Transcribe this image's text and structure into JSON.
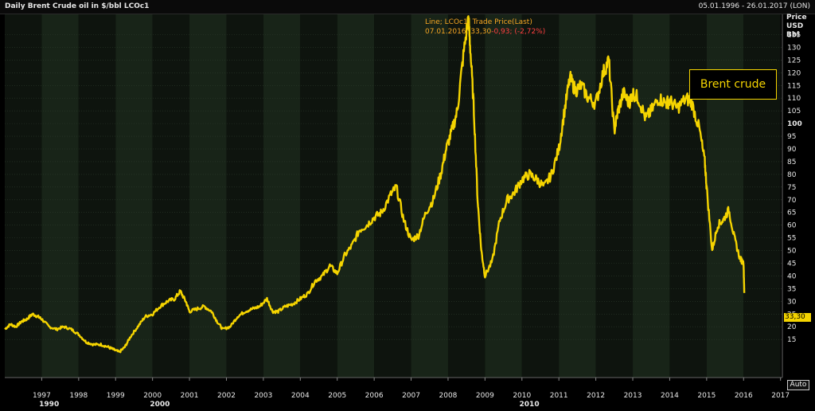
{
  "header": {
    "title": "Daily Brent Crude oil in $/bbl LCOc1",
    "date_range": "05.01.1996 - 26.01.2017 (LON)"
  },
  "axis": {
    "unit_lines": [
      "Price",
      "USD",
      "Bbl"
    ]
  },
  "tooltip": {
    "line1": "Line; LCOc1; Trade Price(Last)",
    "line2_a": "07.01.2016; 33,30",
    "line2_b": "-0,93; (-2,72%)"
  },
  "last_value_label": "33,30",
  "auto_button": "Auto",
  "annotation": "Brent crude",
  "colors": {
    "line": "#f5d400",
    "band_dark": "#0e140e",
    "band_light": "#182418",
    "grid": "#2c3a2c"
  },
  "chart_data": {
    "type": "line",
    "title": "Daily Brent Crude oil in $/bbl LCOc1",
    "ylabel": "Price USD Bbl",
    "xlabel": "",
    "xlim": [
      1996.0,
      2017.05
    ],
    "ylim": [
      0,
      143
    ],
    "y_ticks": [
      15,
      20,
      25,
      30,
      35,
      40,
      45,
      50,
      55,
      60,
      65,
      70,
      75,
      80,
      85,
      90,
      95,
      100,
      105,
      110,
      115,
      120,
      125,
      130,
      135
    ],
    "y_bold_ticks": [
      100
    ],
    "x_ticks": [
      1997,
      1998,
      1999,
      2000,
      2001,
      2002,
      2003,
      2004,
      2005,
      2006,
      2007,
      2008,
      2009,
      2010,
      2011,
      2012,
      2013,
      2014,
      2015,
      2016,
      2017
    ],
    "x_major_ticks": [
      1990,
      2000,
      2010
    ],
    "legend": "none",
    "grid": true,
    "series": [
      {
        "x": [
          1996.0,
          1996.15,
          1996.3,
          1996.45,
          1996.6,
          1996.75,
          1996.9,
          1997.0,
          1997.2,
          1997.4,
          1997.6,
          1997.8,
          1998.0,
          1998.2,
          1998.4,
          1998.6,
          1998.8,
          1998.95,
          1999.1,
          1999.25,
          1999.4,
          1999.6,
          1999.8,
          2000.0,
          2000.2,
          2000.4,
          2000.6,
          2000.75,
          2000.9,
          2001.0,
          2001.2,
          2001.4,
          2001.6,
          2001.75,
          2001.9,
          2002.1,
          2002.3,
          2002.5,
          2002.7,
          2002.9,
          2003.1,
          2003.25,
          2003.4,
          2003.6,
          2003.8,
          2004.0,
          2004.2,
          2004.4,
          2004.6,
          2004.8,
          2005.0,
          2005.2,
          2005.4,
          2005.6,
          2005.8,
          2006.0,
          2006.2,
          2006.45,
          2006.6,
          2006.8,
          2007.0,
          2007.2,
          2007.4,
          2007.6,
          2007.8,
          2007.95,
          2008.1,
          2008.25,
          2008.4,
          2008.55,
          2008.6,
          2008.7,
          2008.8,
          2008.9,
          2009.0,
          2009.2,
          2009.4,
          2009.6,
          2009.8,
          2010.0,
          2010.2,
          2010.4,
          2010.6,
          2010.8,
          2011.0,
          2011.15,
          2011.3,
          2011.45,
          2011.6,
          2011.8,
          2012.0,
          2012.2,
          2012.35,
          2012.5,
          2012.6,
          2012.75,
          2012.9,
          2013.0,
          2013.15,
          2013.35,
          2013.5,
          2013.7,
          2013.9,
          2014.0,
          2014.2,
          2014.45,
          2014.6,
          2014.8,
          2014.95,
          2015.0,
          2015.15,
          2015.3,
          2015.45,
          2015.6,
          2015.75,
          2015.9,
          2016.0,
          2016.02
        ],
        "values": [
          19,
          21,
          20,
          22,
          23,
          25,
          24,
          23,
          20,
          19,
          20,
          19,
          17,
          14,
          13,
          13,
          12,
          11,
          10,
          12,
          16,
          20,
          24,
          25,
          28,
          30,
          31,
          34,
          30,
          26,
          27,
          28,
          26,
          22,
          19,
          20,
          24,
          26,
          27,
          28,
          31,
          26,
          26,
          28,
          29,
          31,
          33,
          38,
          40,
          44,
          41,
          48,
          52,
          58,
          60,
          63,
          65,
          72,
          75,
          62,
          54,
          56,
          65,
          70,
          80,
          90,
          97,
          105,
          125,
          142,
          130,
          105,
          70,
          50,
          40,
          46,
          62,
          70,
          73,
          78,
          80,
          78,
          75,
          80,
          90,
          105,
          118,
          113,
          115,
          110,
          108,
          120,
          125,
          97,
          105,
          112,
          108,
          112,
          110,
          102,
          105,
          110,
          108,
          109,
          106,
          110,
          108,
          98,
          85,
          75,
          50,
          60,
          62,
          66,
          55,
          47,
          45,
          33.3
        ]
      }
    ]
  }
}
